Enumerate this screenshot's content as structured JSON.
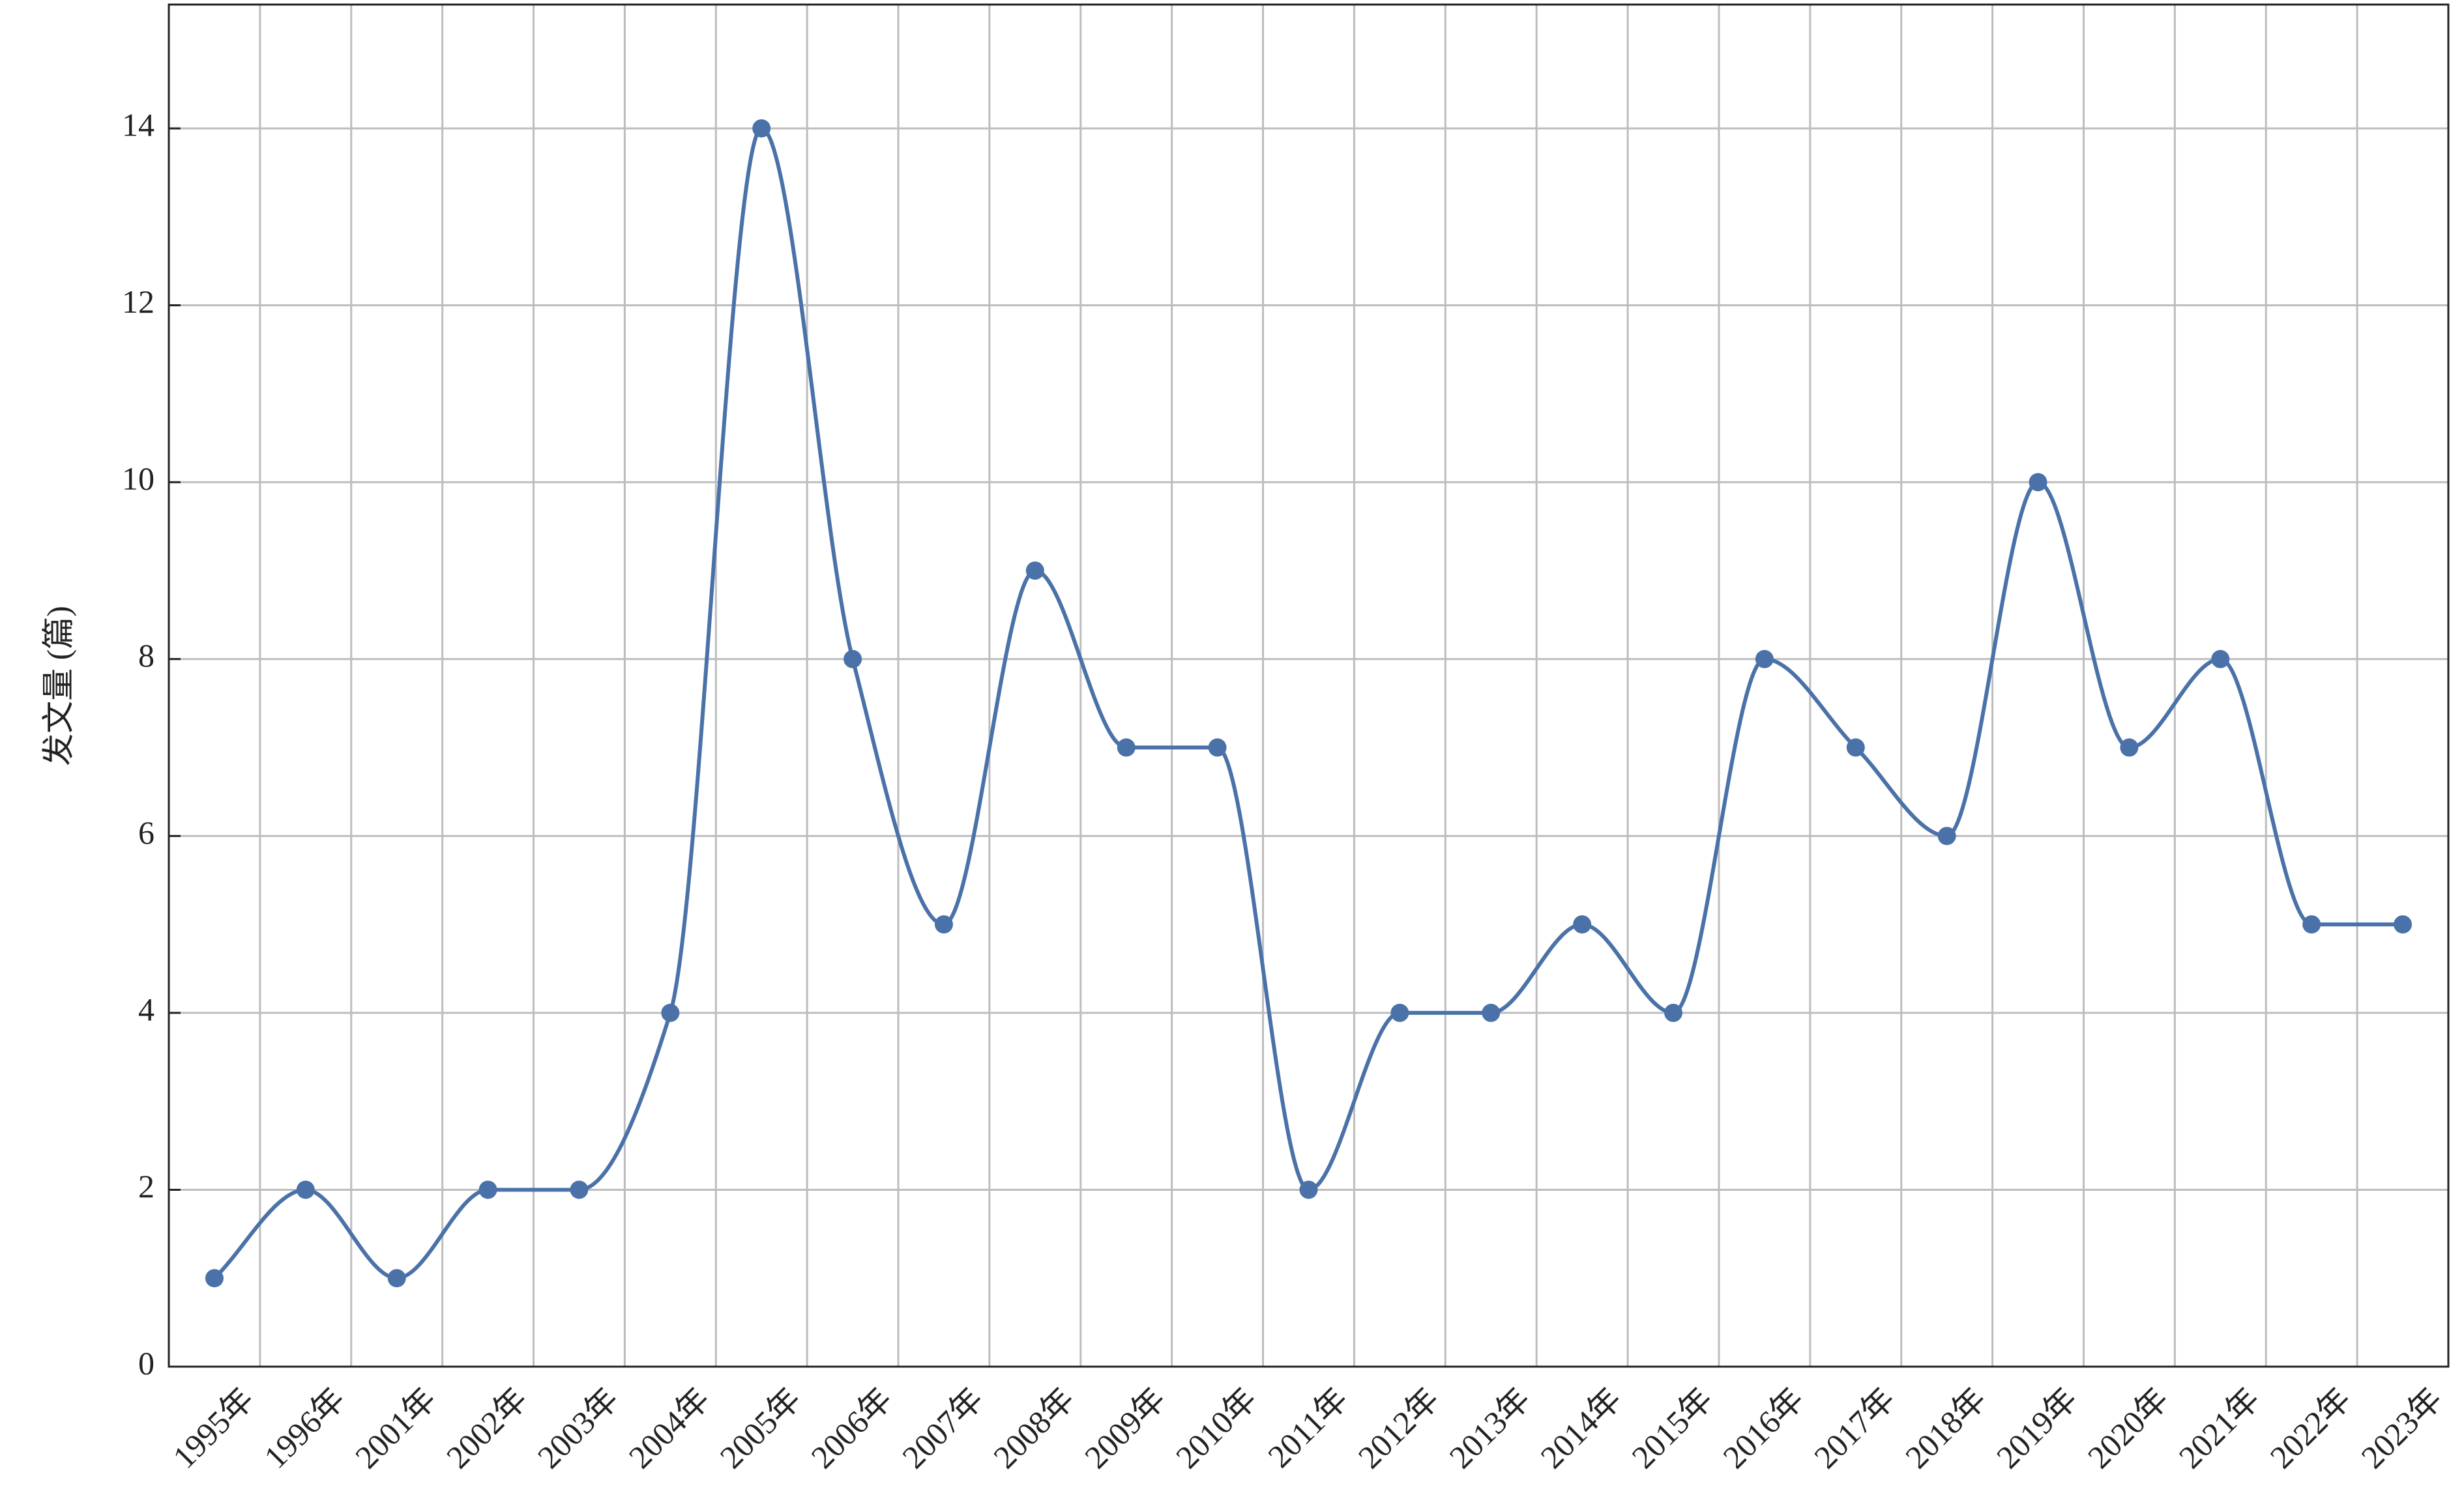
{
  "chart_data": {
    "type": "line",
    "y_label": "发文量 (篇)",
    "categories": [
      "1995年",
      "1996年",
      "2001年",
      "2002年",
      "2003年",
      "2004年",
      "2005年",
      "2006年",
      "2007年",
      "2008年",
      "2009年",
      "2010年",
      "2011年",
      "2012年",
      "2013年",
      "2014年",
      "2015年",
      "2016年",
      "2017年",
      "2018年",
      "2019年",
      "2020年",
      "2021年",
      "2022年",
      "2023年"
    ],
    "series": [
      {
        "color": "#4a72a8",
        "values": [
          1,
          2,
          1,
          2,
          2,
          4,
          14,
          8,
          5,
          9,
          7,
          7,
          2,
          4,
          4,
          5,
          4,
          8,
          7,
          6,
          10,
          7,
          8,
          5,
          5
        ]
      }
    ],
    "ylim": [
      0,
      15.4
    ],
    "yticks": [
      0,
      2,
      4,
      6,
      8,
      10,
      12,
      14
    ],
    "grid": true
  }
}
